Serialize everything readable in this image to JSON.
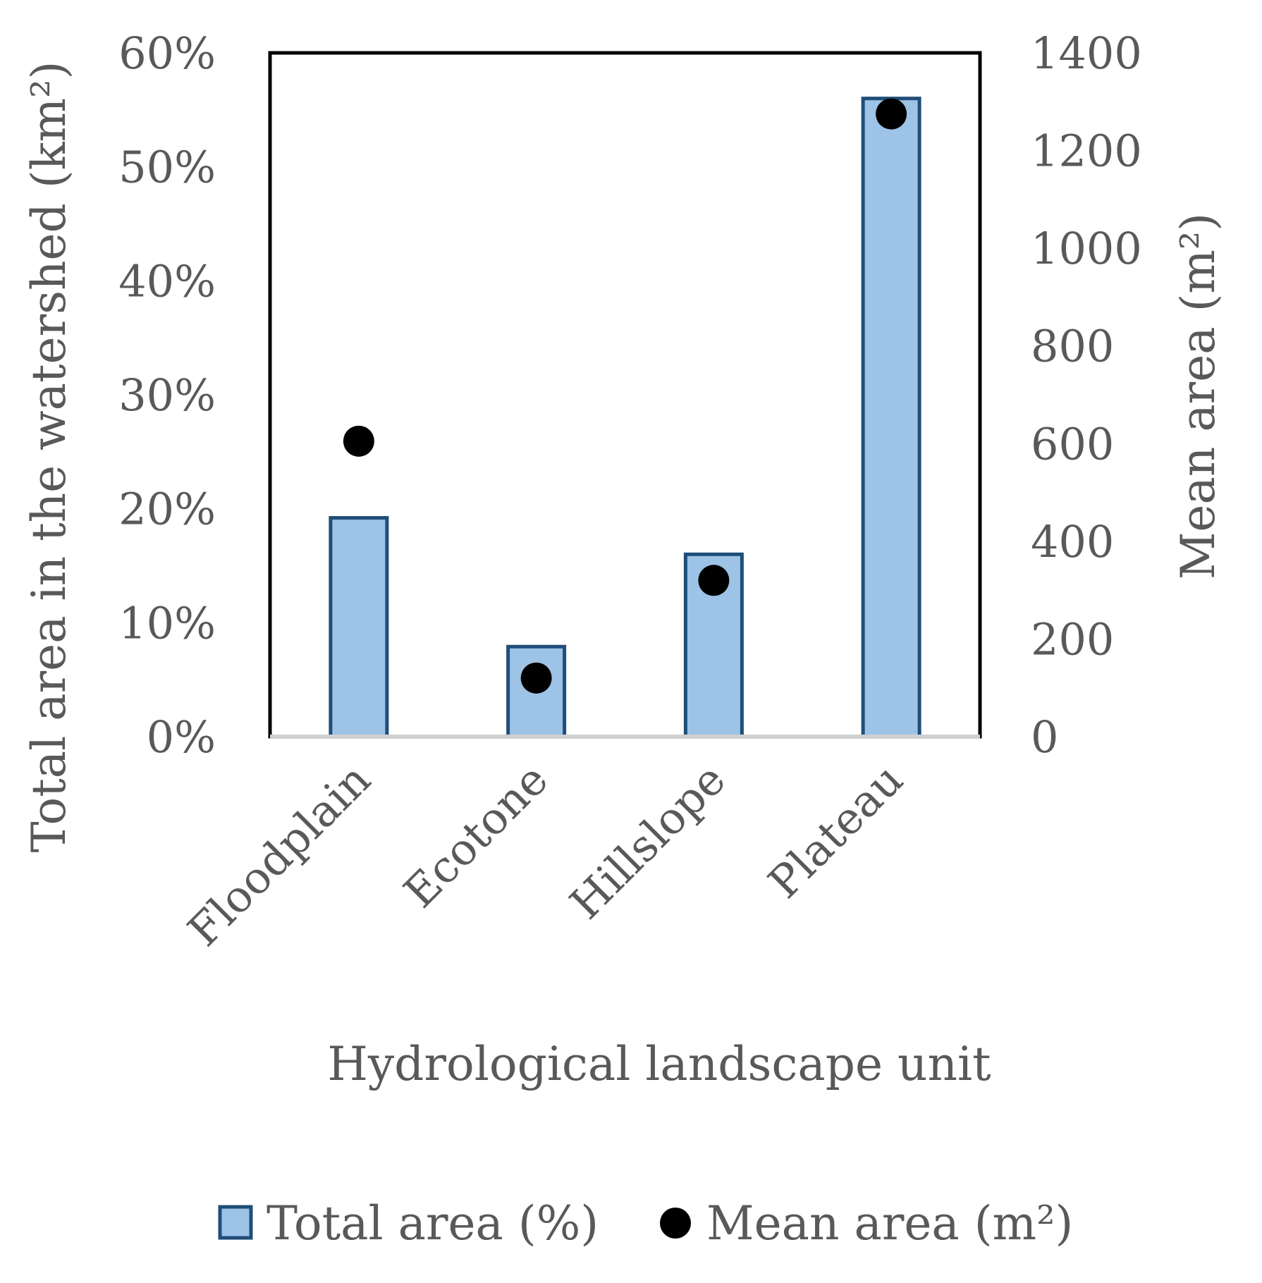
{
  "chart_data": {
    "type": "bar",
    "categories": [
      "Floodplain",
      "Ecotone",
      "Hillslope",
      "Plateau"
    ],
    "series": [
      {
        "name": "Total area (%)",
        "kind": "bar",
        "axis": "left",
        "values": [
          19.2,
          7.9,
          16.0,
          56.0
        ],
        "color": "#9dc3e6",
        "edge_color": "#1f4e79"
      },
      {
        "name": "Mean area (m²)",
        "kind": "scatter",
        "axis": "right",
        "values": [
          605,
          120,
          320,
          1275
        ],
        "color": "#000000"
      }
    ],
    "xlabel": "Hydrological landscape unit",
    "ylabel_left": "Total area in the watershed (km²)",
    "ylabel_right": "Mean area (m²)",
    "ylim_left": [
      0,
      60
    ],
    "ylim_right": [
      0,
      1400
    ],
    "yticks_left": [
      "0%",
      "10%",
      "20%",
      "30%",
      "40%",
      "50%",
      "60%"
    ],
    "yticks_right": [
      "0",
      "200",
      "400",
      "600",
      "800",
      "1000",
      "1200",
      "1400"
    ],
    "grid": false,
    "legend_position": "bottom"
  }
}
